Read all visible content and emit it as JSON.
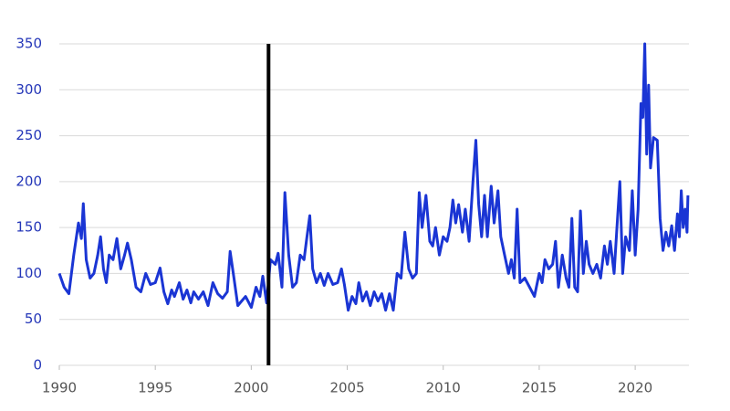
{
  "chart_data": {
    "type": "line",
    "series": [
      {
        "color": "#1a35d4",
        "x": [
          1990.0,
          1990.25,
          1990.5,
          1990.75,
          1991.0,
          1991.15,
          1991.25,
          1991.4,
          1991.6,
          1991.8,
          1992.0,
          1992.15,
          1992.3,
          1992.45,
          1992.6,
          1992.8,
          1993.0,
          1993.2,
          1993.4,
          1993.55,
          1993.75,
          1994.0,
          1994.25,
          1994.5,
          1994.75,
          1995.0,
          1995.25,
          1995.45,
          1995.65,
          1995.85,
          1996.0,
          1996.25,
          1996.45,
          1996.65,
          1996.85,
          1997.0,
          1997.25,
          1997.5,
          1997.75,
          1998.0,
          1998.25,
          1998.5,
          1998.75,
          1998.9,
          1999.1,
          1999.3,
          1999.5,
          1999.7,
          2000.0,
          2000.25,
          2000.45,
          2000.6,
          2000.8,
          2001.0,
          2001.25,
          2001.4,
          2001.6,
          2001.75,
          2001.95,
          2002.15,
          2002.35,
          2002.55,
          2002.75,
          2002.9,
          2003.05,
          2003.2,
          2003.4,
          2003.6,
          2003.8,
          2004.0,
          2004.25,
          2004.5,
          2004.7,
          2004.85,
          2005.05,
          2005.25,
          2005.45,
          2005.6,
          2005.8,
          2006.0,
          2006.2,
          2006.4,
          2006.6,
          2006.8,
          2007.0,
          2007.2,
          2007.4,
          2007.6,
          2007.8,
          2008.0,
          2008.2,
          2008.4,
          2008.6,
          2008.75,
          2008.9,
          2009.1,
          2009.3,
          2009.45,
          2009.6,
          2009.8,
          2010.0,
          2010.2,
          2010.35,
          2010.5,
          2010.65,
          2010.8,
          2011.0,
          2011.15,
          2011.35,
          2011.55,
          2011.7,
          2011.85,
          2012.0,
          2012.15,
          2012.3,
          2012.5,
          2012.65,
          2012.85,
          2013.0,
          2013.2,
          2013.4,
          2013.55,
          2013.7,
          2013.85,
          2014.0,
          2014.25,
          2014.5,
          2014.75,
          2015.0,
          2015.15,
          2015.3,
          2015.5,
          2015.7,
          2015.85,
          2016.0,
          2016.2,
          2016.4,
          2016.55,
          2016.7,
          2016.85,
          2017.0,
          2017.15,
          2017.3,
          2017.45,
          2017.6,
          2017.8,
          2018.0,
          2018.2,
          2018.4,
          2018.55,
          2018.7,
          2018.9,
          2019.05,
          2019.2,
          2019.35,
          2019.5,
          2019.7,
          2019.85,
          2020.0,
          2020.15,
          2020.3,
          2020.4,
          2020.5,
          2020.6,
          2020.7,
          2020.8,
          2020.95,
          2021.15,
          2021.3,
          2021.45,
          2021.6,
          2021.75,
          2021.9,
          2022.05,
          2022.2,
          2022.3,
          2022.4,
          2022.5,
          2022.6,
          2022.7,
          2022.75
        ],
        "values": [
          100,
          85,
          78,
          120,
          155,
          138,
          176,
          115,
          95,
          100,
          120,
          140,
          105,
          90,
          120,
          115,
          138,
          105,
          120,
          133,
          115,
          85,
          80,
          100,
          88,
          90,
          106,
          80,
          67,
          82,
          75,
          90,
          72,
          82,
          68,
          80,
          72,
          80,
          65,
          90,
          78,
          73,
          80,
          124,
          95,
          65,
          70,
          75,
          63,
          85,
          75,
          97,
          68,
          115,
          110,
          122,
          85,
          188,
          120,
          85,
          90,
          120,
          115,
          140,
          163,
          105,
          90,
          100,
          87,
          100,
          88,
          90,
          105,
          88,
          60,
          75,
          67,
          90,
          70,
          80,
          65,
          80,
          70,
          78,
          60,
          78,
          60,
          100,
          95,
          145,
          105,
          95,
          100,
          188,
          150,
          185,
          135,
          130,
          150,
          120,
          140,
          135,
          150,
          180,
          155,
          175,
          145,
          170,
          135,
          200,
          245,
          175,
          140,
          185,
          140,
          195,
          155,
          190,
          140,
          120,
          100,
          115,
          95,
          170,
          90,
          95,
          85,
          75,
          100,
          90,
          115,
          105,
          110,
          135,
          85,
          120,
          95,
          85,
          160,
          85,
          80,
          168,
          100,
          135,
          110,
          100,
          110,
          95,
          130,
          110,
          135,
          100,
          150,
          200,
          100,
          140,
          125,
          190,
          120,
          170,
          285,
          270,
          350,
          230,
          305,
          215,
          248,
          245,
          160,
          125,
          145,
          130,
          152,
          125,
          165,
          140,
          190,
          150,
          170,
          145,
          185
        ]
      }
    ],
    "xlim": [
      1990,
      2022.8
    ],
    "xticks": [
      1990,
      1995,
      2000,
      2005,
      2010,
      2015,
      2020
    ],
    "ylim": [
      0,
      350
    ],
    "yticks": [
      0,
      50,
      100,
      150,
      200,
      250,
      300,
      350
    ],
    "grid": true,
    "vline": {
      "x": 2000.9,
      "color": "#000000"
    }
  }
}
